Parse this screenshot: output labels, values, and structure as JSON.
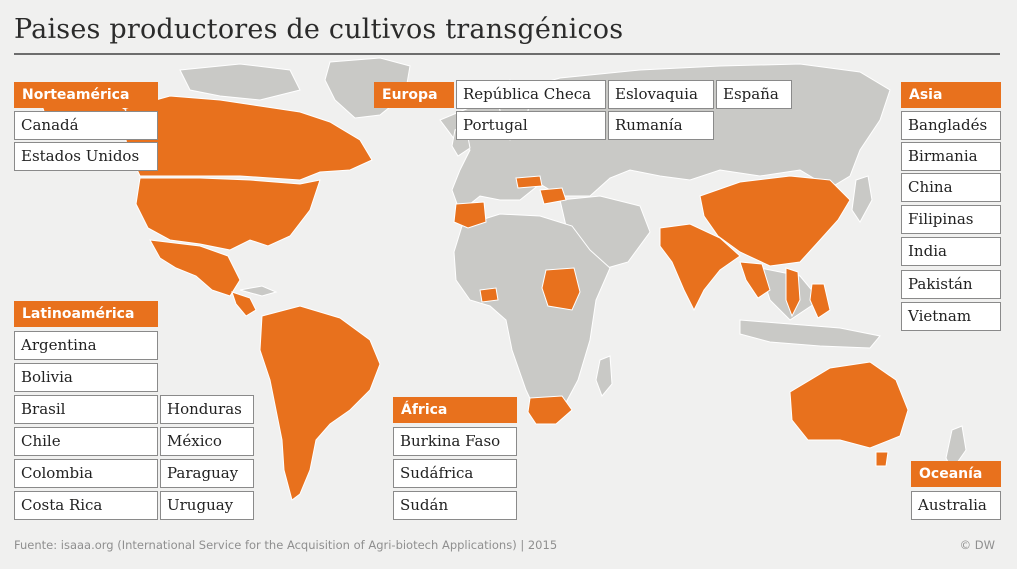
{
  "title": "Paises productores de cultivos transgénicos",
  "colors": {
    "highlight": "#e8711d",
    "land": "#c9c9c6",
    "ocean": "#f0f0ef",
    "border": "#ffffff"
  },
  "regions": {
    "norteamerica": {
      "label": "Norteamérica",
      "countries": [
        "Canadá",
        "Estados Unidos"
      ]
    },
    "europa": {
      "label": "Europa",
      "countries": [
        "República Checa",
        "Eslovaquia",
        "España",
        "Portugal",
        "Rumanía"
      ]
    },
    "asia": {
      "label": "Asia",
      "countries": [
        "Bangladés",
        "Birmania",
        "China",
        "Filipinas",
        "India",
        "Pakistán",
        "Vietnam"
      ]
    },
    "latinoamerica": {
      "label": "Latinoamérica",
      "countries": [
        "Argentina",
        "Bolivia",
        "Brasil",
        "Honduras",
        "Chile",
        "México",
        "Colombia",
        "Paraguay",
        "Costa Rica",
        "Uruguay"
      ]
    },
    "africa": {
      "label": "África",
      "countries": [
        "Burkina Faso",
        "Sudáfrica",
        "Sudán"
      ]
    },
    "oceania": {
      "label": "Oceanía",
      "countries": [
        "Australia"
      ]
    }
  },
  "footer": {
    "source": "Fuente: isaaa.org (International Service for the Acquisition of Agri-biotech Applications) | 2015",
    "credit": "© DW"
  }
}
